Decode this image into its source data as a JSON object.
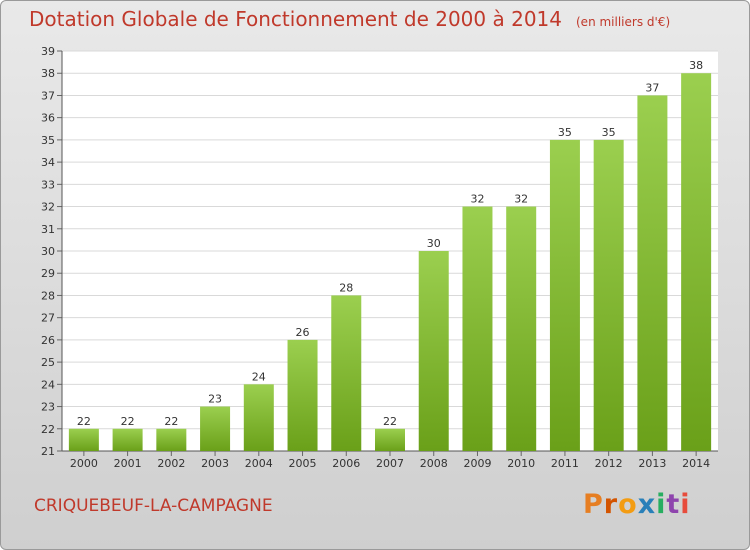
{
  "header": {
    "title": "Dotation Globale de Fonctionnement de 2000 à 2014",
    "unit": "(en milliers d'€)"
  },
  "footer": {
    "commune": "CRIQUEBEUF-LA-CAMPAGNE",
    "brand": "Proxiti"
  },
  "colors": {
    "title": "#c0392b",
    "bar_top": "#9bcf4f",
    "bar_bottom": "#6aa019",
    "logo": [
      "#e67e22",
      "#d35400",
      "#f39c12",
      "#2980b9",
      "#27ae60",
      "#8e44ad",
      "#e74c3c"
    ]
  },
  "chart_data": {
    "type": "bar",
    "title": "Dotation Globale de Fonctionnement de 2000 à 2014",
    "xlabel": "",
    "ylabel": "en milliers d'€",
    "categories": [
      "2000",
      "2001",
      "2002",
      "2003",
      "2004",
      "2005",
      "2006",
      "2007",
      "2008",
      "2009",
      "2010",
      "2011",
      "2012",
      "2013",
      "2014"
    ],
    "values": [
      22,
      22,
      22,
      23,
      24,
      26,
      28,
      22,
      30,
      32,
      32,
      35,
      35,
      37,
      38
    ],
    "ylim": [
      21,
      39
    ],
    "yticks": [
      21,
      22,
      23,
      24,
      25,
      26,
      27,
      28,
      29,
      30,
      31,
      32,
      33,
      34,
      35,
      36,
      37,
      38,
      39
    ],
    "grid": true
  }
}
